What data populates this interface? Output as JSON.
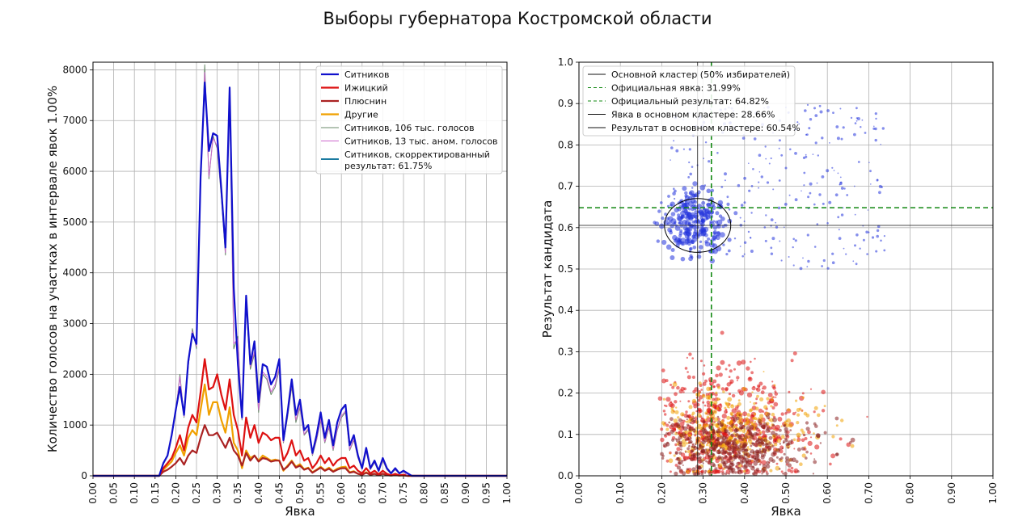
{
  "figure": {
    "title": "Выборы губернатора Костромской области"
  },
  "chart_data": [
    {
      "type": "line",
      "xlabel": "Явка",
      "ylabel": "Количество голосов на участках в интервале явок 1.00%",
      "xlim": [
        0,
        1
      ],
      "ylim": [
        0,
        8150
      ],
      "xticks": [
        "0.00",
        "0.05",
        "0.10",
        "0.15",
        "0.20",
        "0.25",
        "0.30",
        "0.35",
        "0.40",
        "0.45",
        "0.50",
        "0.55",
        "0.60",
        "0.65",
        "0.70",
        "0.75",
        "0.80",
        "0.85",
        "0.90",
        "0.95",
        "1.00"
      ],
      "yticks": [
        "0",
        "1000",
        "2000",
        "3000",
        "4000",
        "5000",
        "6000",
        "7000",
        "8000"
      ],
      "grid": true,
      "legend_position": "top-right",
      "series": [
        {
          "name": "Ситников",
          "color": "#1010cc",
          "width": 2.2,
          "x": [
            0,
            0.16,
            0.17,
            0.18,
            0.19,
            0.2,
            0.21,
            0.22,
            0.23,
            0.24,
            0.25,
            0.26,
            0.27,
            0.28,
            0.29,
            0.3,
            0.31,
            0.32,
            0.33,
            0.34,
            0.35,
            0.36,
            0.37,
            0.38,
            0.39,
            0.4,
            0.41,
            0.42,
            0.43,
            0.44,
            0.45,
            0.46,
            0.47,
            0.48,
            0.49,
            0.5,
            0.51,
            0.52,
            0.53,
            0.54,
            0.55,
            0.56,
            0.57,
            0.58,
            0.59,
            0.6,
            0.61,
            0.62,
            0.63,
            0.64,
            0.65,
            0.66,
            0.67,
            0.68,
            0.69,
            0.7,
            0.71,
            0.72,
            0.73,
            0.74,
            0.75,
            0.76,
            0.77,
            1.0
          ],
          "y": [
            0,
            0,
            250,
            400,
            800,
            1300,
            1750,
            1200,
            2250,
            2800,
            2600,
            5900,
            7750,
            6400,
            6750,
            6700,
            5650,
            4500,
            7650,
            3700,
            2200,
            1150,
            3550,
            2200,
            2650,
            1450,
            2200,
            2150,
            1800,
            1950,
            2300,
            700,
            1250,
            1900,
            1200,
            1500,
            900,
            1000,
            450,
            800,
            1250,
            750,
            1100,
            600,
            1050,
            1300,
            1400,
            600,
            800,
            400,
            150,
            550,
            150,
            300,
            100,
            350,
            150,
            50,
            150,
            50,
            100,
            50,
            0,
            0
          ]
        },
        {
          "name": "Ижицкий",
          "color": "#dd1111",
          "width": 2.2,
          "x": [
            0,
            0.16,
            0.17,
            0.18,
            0.19,
            0.2,
            0.21,
            0.22,
            0.23,
            0.24,
            0.25,
            0.26,
            0.27,
            0.28,
            0.29,
            0.3,
            0.31,
            0.32,
            0.33,
            0.34,
            0.35,
            0.36,
            0.37,
            0.38,
            0.39,
            0.4,
            0.41,
            0.42,
            0.43,
            0.44,
            0.45,
            0.46,
            0.47,
            0.48,
            0.49,
            0.5,
            0.51,
            0.52,
            0.53,
            0.54,
            0.55,
            0.56,
            0.57,
            0.58,
            0.59,
            0.6,
            0.61,
            0.62,
            0.63,
            0.64,
            0.65,
            0.66,
            0.67,
            0.68,
            0.69,
            0.7,
            0.71,
            0.72,
            0.73,
            0.74,
            0.75,
            0.76,
            1.0
          ],
          "y": [
            0,
            0,
            150,
            250,
            350,
            550,
            800,
            500,
            950,
            1200,
            1050,
            1650,
            2300,
            1700,
            1750,
            2000,
            1600,
            1300,
            1900,
            1200,
            900,
            400,
            1150,
            750,
            1000,
            650,
            850,
            800,
            700,
            750,
            750,
            300,
            450,
            700,
            400,
            500,
            300,
            350,
            150,
            250,
            400,
            250,
            350,
            200,
            300,
            350,
            350,
            150,
            200,
            100,
            50,
            150,
            50,
            100,
            30,
            100,
            40,
            10,
            40,
            10,
            20,
            0,
            0
          ]
        },
        {
          "name": "Плюснин",
          "color": "#aa2222",
          "width": 2.2,
          "x": [
            0,
            0.16,
            0.17,
            0.18,
            0.19,
            0.2,
            0.21,
            0.22,
            0.23,
            0.24,
            0.25,
            0.26,
            0.27,
            0.28,
            0.29,
            0.3,
            0.31,
            0.32,
            0.33,
            0.34,
            0.35,
            0.36,
            0.37,
            0.38,
            0.39,
            0.4,
            0.41,
            0.42,
            0.43,
            0.44,
            0.45,
            0.46,
            0.47,
            0.48,
            0.49,
            0.5,
            0.51,
            0.52,
            0.53,
            0.54,
            0.55,
            0.56,
            0.57,
            0.58,
            0.59,
            0.6,
            0.61,
            0.62,
            0.63,
            0.64,
            0.65,
            0.66,
            0.67,
            0.68,
            0.69,
            0.7,
            0.71,
            0.72,
            0.73,
            0.74,
            0.75,
            0.76,
            1.0
          ],
          "y": [
            0,
            0,
            80,
            120,
            180,
            250,
            350,
            220,
            400,
            500,
            450,
            750,
            1000,
            800,
            800,
            850,
            700,
            550,
            750,
            500,
            400,
            200,
            450,
            300,
            400,
            280,
            350,
            330,
            280,
            300,
            300,
            120,
            180,
            280,
            160,
            200,
            120,
            150,
            60,
            110,
            160,
            100,
            140,
            80,
            120,
            150,
            150,
            60,
            80,
            40,
            20,
            60,
            20,
            40,
            10,
            40,
            15,
            5,
            15,
            5,
            10,
            0,
            0
          ]
        },
        {
          "name": "Другие",
          "color": "#f0a000",
          "width": 2.2,
          "x": [
            0,
            0.16,
            0.17,
            0.18,
            0.19,
            0.2,
            0.21,
            0.22,
            0.23,
            0.24,
            0.25,
            0.26,
            0.27,
            0.28,
            0.29,
            0.3,
            0.31,
            0.32,
            0.33,
            0.34,
            0.35,
            0.36,
            0.37,
            0.38,
            0.39,
            0.4,
            0.41,
            0.42,
            0.43,
            0.44,
            0.45,
            0.46,
            0.47,
            0.48,
            0.49,
            0.5,
            0.51,
            0.52,
            0.53,
            0.54,
            0.55,
            0.56,
            0.57,
            0.58,
            0.59,
            0.6,
            0.61,
            0.62,
            0.63,
            0.64,
            0.65,
            0.66,
            0.67,
            0.68,
            0.69,
            0.7,
            0.71,
            0.72,
            0.73,
            0.74,
            0.75,
            0.76,
            1.0
          ],
          "y": [
            0,
            0,
            120,
            200,
            280,
            450,
            600,
            400,
            750,
            900,
            800,
            1300,
            1800,
            1200,
            1450,
            1450,
            1100,
            850,
            1350,
            650,
            500,
            150,
            500,
            350,
            400,
            300,
            400,
            350,
            300,
            320,
            300,
            100,
            200,
            300,
            180,
            230,
            130,
            160,
            70,
            120,
            180,
            110,
            160,
            90,
            140,
            170,
            180,
            70,
            90,
            40,
            20,
            70,
            20,
            40,
            10,
            40,
            15,
            5,
            15,
            5,
            10,
            0,
            0
          ]
        },
        {
          "name": "Ситников, 106 тыс. голосов",
          "color": "#6a8a6a",
          "width": 1,
          "x": [
            0,
            0.16,
            0.17,
            0.18,
            0.19,
            0.2,
            0.21,
            0.22,
            0.23,
            0.24,
            0.25,
            0.26,
            0.27,
            0.28,
            0.29,
            0.3,
            0.31,
            0.32,
            0.33,
            0.34,
            0.35,
            0.36,
            0.37,
            0.38,
            0.39,
            0.4,
            0.41,
            0.42,
            0.43,
            0.44,
            0.45,
            0.46,
            0.47,
            0.48,
            0.49,
            0.5,
            0.51,
            0.52,
            0.53,
            0.54,
            0.55,
            0.56,
            0.57,
            0.58,
            0.59,
            0.6,
            0.61,
            0.62,
            0.63,
            0.64,
            0.65,
            0.66,
            0.67,
            0.68,
            0.69,
            0.7,
            0.71,
            0.72,
            0.73,
            0.74,
            0.75,
            0.76,
            1.0
          ],
          "y": [
            0,
            0,
            230,
            380,
            780,
            1250,
            2000,
            1150,
            2150,
            2900,
            2500,
            5700,
            8100,
            5850,
            6700,
            6450,
            5500,
            4350,
            7450,
            2500,
            2750,
            1100,
            3350,
            2100,
            2400,
            1250,
            2000,
            1900,
            1600,
            1750,
            2100,
            650,
            1150,
            1750,
            1050,
            1350,
            800,
            900,
            400,
            700,
            1100,
            650,
            950,
            500,
            900,
            1150,
            1250,
            500,
            700,
            350,
            130,
            480,
            120,
            260,
            80,
            300,
            120,
            40,
            120,
            40,
            80,
            0,
            0
          ]
        },
        {
          "name": "Ситников, 13 тыс. аном. голосов",
          "color": "#cc66cc",
          "width": 1,
          "x": [
            0,
            0.16,
            0.17,
            0.18,
            0.19,
            0.2,
            0.21,
            0.22,
            0.23,
            0.24,
            0.25,
            0.26,
            0.27,
            0.28,
            0.29,
            0.3,
            0.31,
            0.32,
            0.33,
            0.34,
            0.35,
            0.36,
            0.37,
            0.38,
            0.39,
            0.4,
            0.41,
            0.42,
            0.43,
            0.44,
            0.45,
            0.46,
            0.47,
            0.48,
            0.49,
            0.5,
            0.51,
            0.52,
            0.53,
            0.54,
            0.55,
            0.56,
            0.57,
            0.58,
            0.59,
            0.6,
            0.61,
            0.62,
            0.63,
            0.64,
            0.65,
            0.66,
            0.67,
            0.68,
            0.69,
            0.7,
            0.71,
            0.72,
            0.73,
            0.74,
            0.75,
            0.76,
            1.0
          ],
          "y": [
            0,
            0,
            240,
            390,
            790,
            1270,
            1950,
            1170,
            2180,
            2850,
            2550,
            5750,
            7950,
            5900,
            6650,
            6500,
            5550,
            4400,
            7500,
            2600,
            2700,
            1120,
            3400,
            2150,
            2450,
            1300,
            2050,
            1950,
            1650,
            1800,
            2150,
            670,
            1180,
            1800,
            1100,
            1380,
            820,
            930,
            420,
            720,
            1120,
            670,
            980,
            520,
            920,
            1180,
            1280,
            520,
            720,
            360,
            135,
            490,
            125,
            270,
            85,
            310,
            125,
            42,
            125,
            42,
            85,
            0,
            0
          ]
        }
      ],
      "legend_extra": {
        "name": "Ситников, скорректированный результат: 61.75%",
        "color": "#1a7aa0"
      }
    },
    {
      "type": "scatter",
      "xlabel": "Явка",
      "ylabel": "Результат кандидата",
      "xlim": [
        0,
        1
      ],
      "ylim": [
        0,
        1
      ],
      "xticks": [
        "0.00",
        "0.10",
        "0.20",
        "0.30",
        "0.40",
        "0.50",
        "0.60",
        "0.70",
        "0.80",
        "0.90",
        "1.00"
      ],
      "yticks": [
        "0.0",
        "0.1",
        "0.2",
        "0.3",
        "0.4",
        "0.5",
        "0.6",
        "0.7",
        "0.8",
        "0.9",
        "1.0"
      ],
      "grid": true,
      "legend_position": "top-left",
      "series_colors": [
        "#2233dd",
        "#dd1111",
        "#f0a000",
        "#8b2020"
      ],
      "official_turnout": 0.3199,
      "official_result": 0.6482,
      "cluster_turnout": 0.2866,
      "cluster_result": 0.6054,
      "cluster_ellipse": {
        "cx": 0.2866,
        "cy": 0.6054,
        "rx": 0.08,
        "ry": 0.065
      },
      "legend": [
        {
          "label": "Основной кластер (50% избирателей)",
          "color": "#111111",
          "dash": "none"
        },
        {
          "label": "Официальная явка: 31.99%",
          "color": "#118811",
          "dash": "4,3"
        },
        {
          "label": "Официальный результат: 64.82%",
          "color": "#118811",
          "dash": "4,3"
        },
        {
          "label": "Явка в основном кластере: 28.66%",
          "color": "#111111",
          "dash": "none"
        },
        {
          "label": "Результат в основном кластере: 60.54%",
          "color": "#111111",
          "dash": "none"
        }
      ]
    }
  ]
}
